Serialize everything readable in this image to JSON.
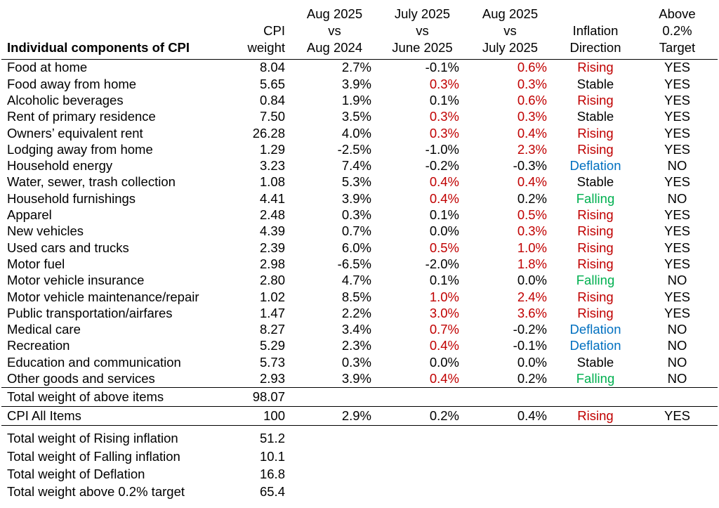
{
  "headers": {
    "component": "Individual components of CPI",
    "weight": [
      "CPI",
      "weight"
    ],
    "yoy": [
      "Aug 2025",
      "vs",
      "Aug 2024"
    ],
    "prev_mom": [
      "July 2025",
      "vs",
      "June 2025"
    ],
    "mom": [
      "Aug 2025",
      "vs",
      "July 2025"
    ],
    "direction": [
      "Inflation",
      "Direction"
    ],
    "target": [
      "Above",
      "0.2%",
      "Target"
    ]
  },
  "colors": {
    "Rising": "#c00000",
    "Falling": "#00b050",
    "Deflation": "#0070c0",
    "Stable": "#000000",
    "above_target_value": "#c00000"
  },
  "rows": [
    {
      "name": "Food at home",
      "weight": "8.04",
      "yoy": "2.7%",
      "prev": "-0.1%",
      "prev_red": false,
      "mom": "0.6%",
      "mom_red": true,
      "dir": "Rising",
      "tgt": "YES"
    },
    {
      "name": "Food away from home",
      "weight": "5.65",
      "yoy": "3.9%",
      "prev": "0.3%",
      "prev_red": true,
      "mom": "0.3%",
      "mom_red": true,
      "dir": "Stable",
      "tgt": "YES"
    },
    {
      "name": "Alcoholic beverages",
      "weight": "0.84",
      "yoy": "1.9%",
      "prev": "0.1%",
      "prev_red": false,
      "mom": "0.6%",
      "mom_red": true,
      "dir": "Rising",
      "tgt": "YES"
    },
    {
      "name": "Rent of primary residence",
      "weight": "7.50",
      "yoy": "3.5%",
      "prev": "0.3%",
      "prev_red": true,
      "mom": "0.3%",
      "mom_red": true,
      "dir": "Stable",
      "tgt": "YES"
    },
    {
      "name": "Owners’ equivalent rent",
      "weight": "26.28",
      "yoy": "4.0%",
      "prev": "0.3%",
      "prev_red": true,
      "mom": "0.4%",
      "mom_red": true,
      "dir": "Rising",
      "tgt": "YES"
    },
    {
      "name": "Lodging away from home",
      "weight": "1.29",
      "yoy": "-2.5%",
      "prev": "-1.0%",
      "prev_red": false,
      "mom": "2.3%",
      "mom_red": true,
      "dir": "Rising",
      "tgt": "YES"
    },
    {
      "name": "Household energy",
      "weight": "3.23",
      "yoy": "7.4%",
      "prev": "-0.2%",
      "prev_red": false,
      "mom": "-0.3%",
      "mom_red": false,
      "dir": "Deflation",
      "tgt": "NO"
    },
    {
      "name": "Water, sewer, trash collection",
      "weight": "1.08",
      "yoy": "5.3%",
      "prev": "0.4%",
      "prev_red": true,
      "mom": "0.4%",
      "mom_red": true,
      "dir": "Stable",
      "tgt": "YES"
    },
    {
      "name": "Household furnishings",
      "weight": "4.41",
      "yoy": "3.9%",
      "prev": "0.4%",
      "prev_red": true,
      "mom": "0.2%",
      "mom_red": false,
      "dir": "Falling",
      "tgt": "NO"
    },
    {
      "name": "Apparel",
      "weight": "2.48",
      "yoy": "0.3%",
      "prev": "0.1%",
      "prev_red": false,
      "mom": "0.5%",
      "mom_red": true,
      "dir": "Rising",
      "tgt": "YES"
    },
    {
      "name": "New vehicles",
      "weight": "4.39",
      "yoy": "0.7%",
      "prev": "0.0%",
      "prev_red": false,
      "mom": "0.3%",
      "mom_red": true,
      "dir": "Rising",
      "tgt": "YES"
    },
    {
      "name": "Used cars and trucks",
      "weight": "2.39",
      "yoy": "6.0%",
      "prev": "0.5%",
      "prev_red": true,
      "mom": "1.0%",
      "mom_red": true,
      "dir": "Rising",
      "tgt": "YES"
    },
    {
      "name": "Motor fuel",
      "weight": "2.98",
      "yoy": "-6.5%",
      "prev": "-2.0%",
      "prev_red": false,
      "mom": "1.8%",
      "mom_red": true,
      "dir": "Rising",
      "tgt": "YES"
    },
    {
      "name": "Motor vehicle insurance",
      "weight": "2.80",
      "yoy": "4.7%",
      "prev": "0.1%",
      "prev_red": false,
      "mom": "0.0%",
      "mom_red": false,
      "dir": "Falling",
      "tgt": "NO"
    },
    {
      "name": "Motor vehicle maintenance/repair",
      "weight": "1.02",
      "yoy": "8.5%",
      "prev": "1.0%",
      "prev_red": true,
      "mom": "2.4%",
      "mom_red": true,
      "dir": "Rising",
      "tgt": "YES"
    },
    {
      "name": "Public transportation/airfares",
      "weight": "1.47",
      "yoy": "2.2%",
      "prev": "3.0%",
      "prev_red": true,
      "mom": "3.6%",
      "mom_red": true,
      "dir": "Rising",
      "tgt": "YES"
    },
    {
      "name": "Medical care",
      "weight": "8.27",
      "yoy": "3.4%",
      "prev": "0.7%",
      "prev_red": true,
      "mom": "-0.2%",
      "mom_red": false,
      "dir": "Deflation",
      "tgt": "NO"
    },
    {
      "name": "Recreation",
      "weight": "5.29",
      "yoy": "2.3%",
      "prev": "0.4%",
      "prev_red": true,
      "mom": "-0.1%",
      "mom_red": false,
      "dir": "Deflation",
      "tgt": "NO"
    },
    {
      "name": "Education and communication",
      "weight": "5.73",
      "yoy": "0.3%",
      "prev": "0.0%",
      "prev_red": false,
      "mom": "0.0%",
      "mom_red": false,
      "dir": "Stable",
      "tgt": "NO"
    },
    {
      "name": "Other goods and services",
      "weight": "2.93",
      "yoy": "3.9%",
      "prev": "0.4%",
      "prev_red": true,
      "mom": "0.2%",
      "mom_red": false,
      "dir": "Falling",
      "tgt": "NO"
    }
  ],
  "total": {
    "name": "Total weight of above items",
    "weight": "98.07"
  },
  "all_items": {
    "name": "CPI All Items",
    "weight": "100",
    "yoy": "2.9%",
    "prev": "0.2%",
    "mom": "0.4%",
    "dir": "Rising",
    "tgt": "YES"
  },
  "summary": [
    {
      "name": "Total weight of Rising inflation",
      "value": "51.2"
    },
    {
      "name": "Total weight of Falling inflation",
      "value": "10.1"
    },
    {
      "name": "Total weight of Deflation",
      "value": "16.8"
    },
    {
      "name": "Total weight above 0.2% target",
      "value": "65.4"
    }
  ]
}
